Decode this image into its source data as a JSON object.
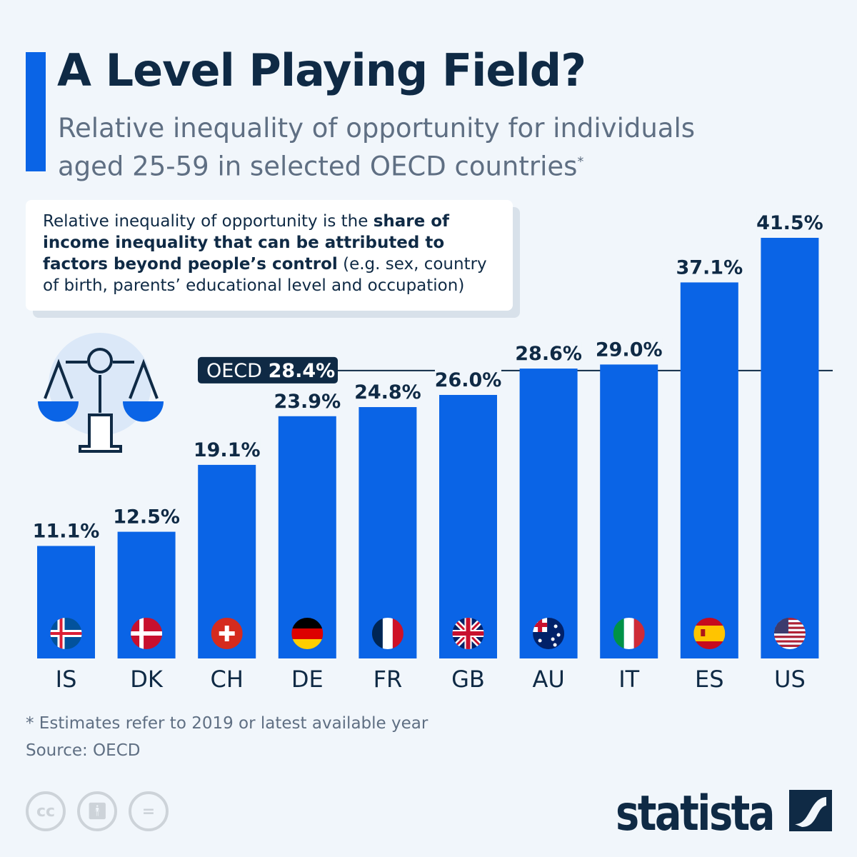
{
  "header": {
    "title": "A Level Playing Field?",
    "subtitle": "Relative inequality of opportunity for individuals aged 25-59 in selected OECD countries",
    "subtitle_mark": "*"
  },
  "note": {
    "part1": "Relative inequality of opportunity is the ",
    "bold": "share of income inequality that can be attributed to factors beyond people’s control",
    "part2": " (e.g. sex, country of birth, parents’ educational level and occupation)"
  },
  "chart_data": {
    "type": "bar",
    "categories": [
      "IS",
      "DK",
      "CH",
      "DE",
      "FR",
      "GB",
      "AU",
      "IT",
      "ES",
      "US"
    ],
    "values": [
      11.1,
      12.5,
      19.1,
      23.9,
      24.8,
      26.0,
      28.6,
      29.0,
      37.1,
      41.5
    ],
    "value_labels": [
      "11.1%",
      "12.5%",
      "19.1%",
      "23.9%",
      "24.8%",
      "26.0%",
      "28.6%",
      "29.0%",
      "37.1%",
      "41.5%"
    ],
    "flags": [
      "iceland-flag",
      "denmark-flag",
      "switzerland-flag",
      "germany-flag",
      "france-flag",
      "uk-flag",
      "australia-flag",
      "italy-flag",
      "spain-flag",
      "usa-flag"
    ],
    "reference": {
      "label": "OECD",
      "value": 28.4,
      "value_label": "28.4%"
    },
    "ylim": [
      0,
      41.5
    ],
    "grid": false,
    "bar_color": "#0a64e6",
    "text_color": "#0f2a45"
  },
  "footer": {
    "footnote": "* Estimates refer to 2019 or latest available year",
    "source": "Source: OECD",
    "brand": "statista",
    "license_icons": [
      "cc",
      "by",
      "nd"
    ],
    "cc_label": "cc",
    "nd_label": "="
  }
}
